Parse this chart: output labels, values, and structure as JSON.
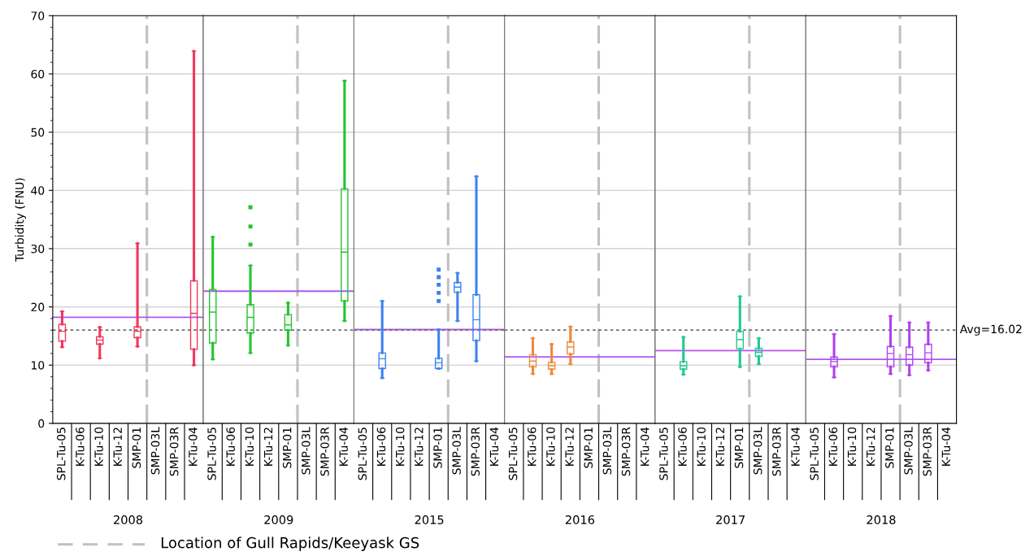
{
  "chart_data": [
    {
      "type": "box",
      "xlabel": "2008",
      "ylabel": "Turbidity (FNU)",
      "annotations": [
        "Location of Gull Rapids/Keeyask GS"
      ],
      "categories": [
        "SPL-Tu-05",
        "K-Tu-06",
        "K-Tu-10",
        "K-Tu-12",
        "SMP-01",
        "SMP-03L",
        "SMP-03R",
        "K-Tu-04"
      ],
      "ylim": [
        0,
        70
      ],
      "yticks": [
        0,
        10,
        20,
        30,
        40,
        50,
        60,
        70
      ],
      "grid": "y",
      "series": [
        {
          "color": "#f0365a",
          "boxes": [
            {
              "low": 13.1,
              "q1": 14.1,
              "median": 15.8,
              "q3": 17.0,
              "high": 19.2
            },
            null,
            {
              "low": 11.2,
              "q1": 13.6,
              "median": 14.3,
              "q3": 14.9,
              "high": 16.5
            },
            null,
            {
              "low": 13.2,
              "q1": 14.7,
              "median": 15.8,
              "q3": 16.6,
              "high": 30.9
            },
            null,
            null,
            {
              "low": 10.0,
              "q1": 12.7,
              "median": 18.9,
              "q3": 24.5,
              "high": 63.9
            }
          ]
        }
      ],
      "ref_lines": [
        {
          "axis": "y",
          "value": 18.2,
          "color": "#b455f0",
          "line_style": "solid"
        },
        {
          "axis": "y",
          "value": 16.02,
          "color": "#707070",
          "line_style": "dotted"
        }
      ]
    },
    {
      "type": "box",
      "xlabel": "2009",
      "categories": [
        "SPL-Tu-05",
        "K-Tu-06",
        "K-Tu-10",
        "K-Tu-12",
        "SMP-01",
        "SMP-03L",
        "SMP-03R",
        "K-Tu-04"
      ],
      "ylim": [
        0,
        70
      ],
      "yticks": [
        0,
        10,
        20,
        30,
        40,
        50,
        60,
        70
      ],
      "grid": "y",
      "tick_labels": "x",
      "series": [
        {
          "color": "#22c42e",
          "boxes": [
            {
              "low": 11.0,
              "q1": 13.8,
              "median": 19.1,
              "q3": 23.0,
              "high": 32.0
            },
            null,
            {
              "low": 12.1,
              "q1": 15.5,
              "median": 18.2,
              "q3": 20.4,
              "high": 27.1,
              "outliers": [
                30.7,
                33.8,
                37.1
              ]
            },
            null,
            {
              "low": 13.4,
              "q1": 16.0,
              "median": 16.9,
              "q3": 18.7,
              "high": 20.7
            },
            null,
            null,
            {
              "low": 17.6,
              "q1": 21.0,
              "median": 29.4,
              "q3": 40.3,
              "high": 58.8
            }
          ]
        }
      ],
      "ref_lines": [
        {
          "axis": "y",
          "value": 22.7,
          "color": "#b455f0",
          "line_style": "solid"
        },
        {
          "axis": "y",
          "value": 16.02,
          "color": "#707070",
          "line_style": "dotted"
        }
      ]
    },
    {
      "type": "box",
      "xlabel": "2015",
      "categories": [
        "SPL-Tu-05",
        "K-Tu-06",
        "K-Tu-10",
        "K-Tu-12",
        "SMP-01",
        "SMP-03L",
        "SMP-03R",
        "K-Tu-04"
      ],
      "ylim": [
        0,
        70
      ],
      "yticks": [
        0,
        10,
        20,
        30,
        40,
        50,
        60,
        70
      ],
      "grid": "y",
      "tick_labels": "x",
      "series": [
        {
          "color": "#3b82f0",
          "boxes": [
            null,
            {
              "low": 7.8,
              "q1": 9.4,
              "median": 11.1,
              "q3": 12.1,
              "high": 21.0
            },
            null,
            null,
            {
              "low": 9.4,
              "q1": 9.4,
              "median": 10.4,
              "q3": 11.2,
              "high": 16.1,
              "outliers": [
                21.0,
                22.4,
                23.8,
                25.1,
                26.4
              ]
            },
            {
              "low": 17.6,
              "q1": 22.5,
              "median": 23.4,
              "q3": 24.2,
              "high": 25.8
            },
            {
              "low": 10.7,
              "q1": 14.2,
              "median": 17.8,
              "q3": 22.1,
              "high": 42.4
            },
            null
          ]
        }
      ],
      "ref_lines": [
        {
          "axis": "y",
          "value": 16.1,
          "color": "#b455f0",
          "line_style": "solid"
        },
        {
          "axis": "y",
          "value": 16.02,
          "color": "#707070",
          "line_style": "dotted"
        }
      ]
    },
    {
      "type": "box",
      "xlabel": "2016",
      "categories": [
        "SPL-Tu-05",
        "K-Tu-06",
        "K-Tu-10",
        "K-Tu-12",
        "SMP-01",
        "SMP-03L",
        "SMP-03R",
        "K-Tu-04"
      ],
      "ylim": [
        0,
        70
      ],
      "yticks": [
        0,
        10,
        20,
        30,
        40,
        50,
        60,
        70
      ],
      "grid": "y",
      "tick_labels": "x",
      "series": [
        {
          "color": "#f0883a",
          "boxes": [
            null,
            {
              "low": 8.5,
              "q1": 9.7,
              "median": 10.7,
              "q3": 11.8,
              "high": 14.6
            },
            {
              "low": 8.5,
              "q1": 9.3,
              "median": 9.9,
              "q3": 10.5,
              "high": 13.6
            },
            {
              "low": 10.2,
              "q1": 11.9,
              "median": 13.1,
              "q3": 14.0,
              "high": 16.6
            },
            null,
            null,
            null,
            null
          ]
        }
      ],
      "ref_lines": [
        {
          "axis": "y",
          "value": 11.4,
          "color": "#b455f0",
          "line_style": "solid"
        },
        {
          "axis": "y",
          "value": 16.02,
          "color": "#707070",
          "line_style": "dotted"
        }
      ]
    },
    {
      "type": "box",
      "xlabel": "2017",
      "categories": [
        "SPL-Tu-05",
        "K-Tu-06",
        "K-Tu-10",
        "K-Tu-12",
        "SMP-01",
        "SMP-03L",
        "SMP-03R",
        "K-Tu-04"
      ],
      "ylim": [
        0,
        70
      ],
      "yticks": [
        0,
        10,
        20,
        30,
        40,
        50,
        60,
        70
      ],
      "grid": "y",
      "tick_labels": "x",
      "series": [
        {
          "color": "#1ec98e",
          "boxes": [
            null,
            {
              "low": 8.4,
              "q1": 9.3,
              "median": 9.9,
              "q3": 10.6,
              "high": 14.8
            },
            null,
            null,
            {
              "low": 9.7,
              "q1": 12.8,
              "median": 14.4,
              "q3": 15.8,
              "high": 21.8
            },
            {
              "low": 10.2,
              "q1": 11.5,
              "median": 12.2,
              "q3": 12.9,
              "high": 14.6
            },
            null,
            null
          ]
        }
      ],
      "ref_lines": [
        {
          "axis": "y",
          "value": 12.5,
          "color": "#b455f0",
          "line_style": "solid"
        },
        {
          "axis": "y",
          "value": 16.02,
          "color": "#707070",
          "line_style": "dotted"
        }
      ]
    },
    {
      "type": "box",
      "xlabel": "2018",
      "categories": [
        "SPL-Tu-05",
        "K-Tu-06",
        "K-Tu-10",
        "K-Tu-12",
        "SMP-01",
        "SMP-03L",
        "SMP-03R",
        "K-Tu-04"
      ],
      "ylim": [
        0,
        70
      ],
      "yticks": [
        0,
        10,
        20,
        30,
        40,
        50,
        60,
        70
      ],
      "grid": "y",
      "tick_labels": "x",
      "series": [
        {
          "color": "#b040f0",
          "boxes": [
            null,
            {
              "low": 7.9,
              "q1": 9.7,
              "median": 10.6,
              "q3": 11.4,
              "high": 15.3
            },
            null,
            null,
            {
              "low": 8.5,
              "q1": 9.7,
              "median": 12.0,
              "q3": 13.2,
              "high": 18.4
            },
            {
              "low": 8.3,
              "q1": 10.0,
              "median": 11.8,
              "q3": 13.1,
              "high": 17.3
            },
            {
              "low": 9.1,
              "q1": 10.4,
              "median": 12.1,
              "q3": 13.6,
              "high": 17.3
            },
            null
          ]
        }
      ],
      "ref_lines": [
        {
          "axis": "y",
          "value": 11.0,
          "color": "#b455f0",
          "line_style": "solid"
        },
        {
          "axis": "y",
          "value": 16.02,
          "color": "#707070",
          "line_style": "dotted",
          "label": "Avg=16.02"
        }
      ]
    }
  ]
}
